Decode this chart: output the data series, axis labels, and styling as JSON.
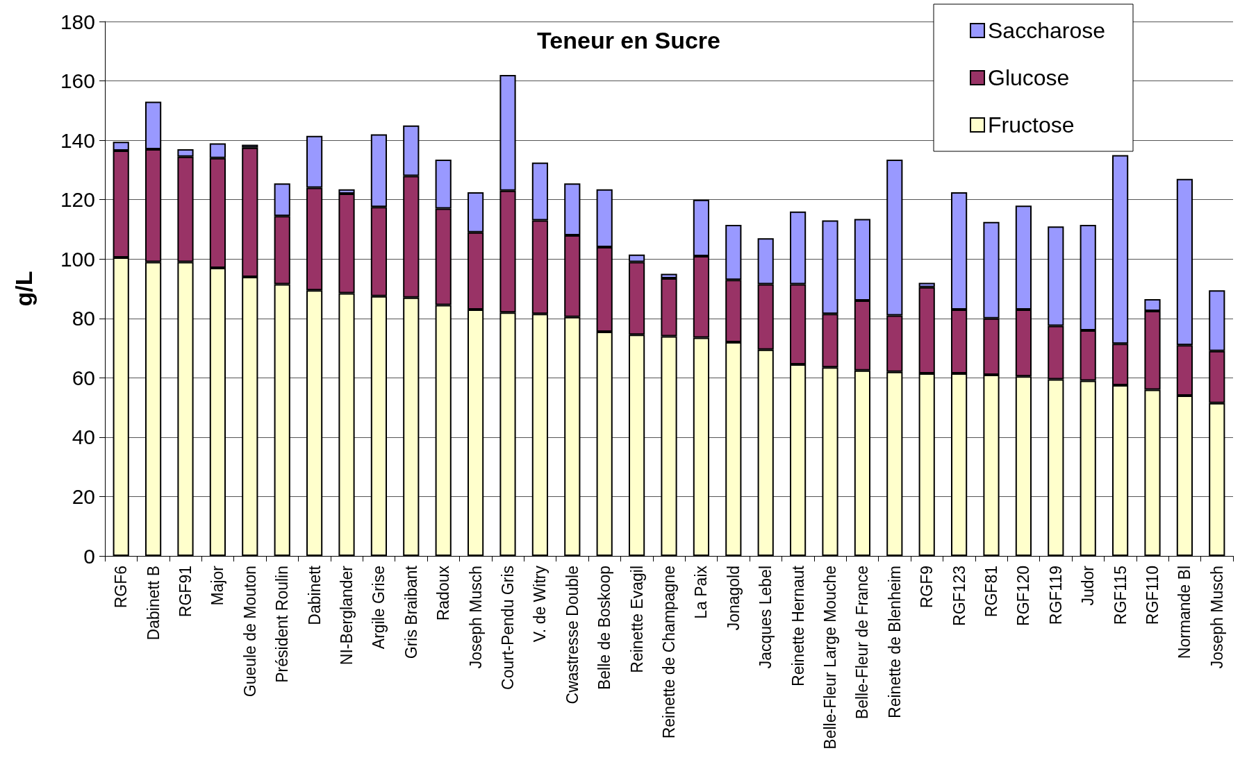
{
  "chart_data": {
    "type": "bar",
    "title": "Teneur en Sucre",
    "ylabel": "g/L",
    "stacked": true,
    "categories": [
      "RGF6",
      "Dabinett B",
      "RGF91",
      "Major",
      "Gueule de Mouton",
      "Président Roulin",
      "Dabinett",
      "NI-Berglander",
      "Argile Grise",
      "Gris Braibant",
      "Radoux",
      "Joseph Musch",
      "Court-Pendu Gris",
      "V. de Witry",
      "Cwastresse Double",
      "Belle de Boskoop",
      "Reinette Evagil",
      "Reinette de Champagne",
      "La Paix",
      "Jonagold",
      "Jacques Lebel",
      "Reinette Hernaut",
      "Belle-Fleur Large Mouche",
      "Belle-Fleur de France",
      "Reinette de Blenheim",
      "RGF9",
      "RGF123",
      "RGF81",
      "RGF120",
      "RGF119",
      "Judor",
      "RGF115",
      "RGF110",
      "Normande Bl",
      "Joseph Musch"
    ],
    "series": [
      {
        "name": "Fructose",
        "color": "#ffffcc",
        "values": [
          100.5,
          99,
          99,
          97,
          94,
          91.5,
          89.5,
          88.5,
          87.5,
          87,
          84.5,
          83,
          82,
          81.5,
          80.5,
          75.5,
          74.5,
          74,
          73.5,
          72,
          69.5,
          64.5,
          63.5,
          62.5,
          62,
          61.5,
          61.5,
          61,
          60.5,
          59.5,
          59,
          57.5,
          56,
          54,
          51.5
        ]
      },
      {
        "name": "Glucose",
        "color": "#993366",
        "values": [
          36,
          38,
          35.5,
          37,
          43.5,
          23,
          34.5,
          33.5,
          30,
          41,
          32.5,
          26,
          41,
          31.5,
          27.5,
          28.5,
          24.5,
          19.5,
          27.5,
          21,
          22,
          27,
          18,
          23.5,
          19,
          29,
          21.5,
          19,
          22.5,
          18,
          17,
          14,
          26.5,
          17,
          17.5
        ]
      },
      {
        "name": "Saccharose",
        "color": "#9999ff",
        "values": [
          3,
          16,
          2.5,
          5,
          1,
          11,
          17.5,
          1.5,
          24.5,
          17,
          16.5,
          13.5,
          39,
          19.5,
          17.5,
          19.5,
          2.5,
          1.5,
          19,
          18.5,
          15.5,
          24.5,
          31.5,
          27.5,
          52.5,
          1.5,
          39.5,
          32.5,
          35,
          33.5,
          35.5,
          63.5,
          4,
          56,
          20.5
        ]
      }
    ],
    "ylim": [
      0,
      180
    ],
    "yticks": [
      0,
      20,
      40,
      60,
      80,
      100,
      120,
      140,
      160,
      180
    ],
    "grid": "y",
    "legend": "top right"
  }
}
